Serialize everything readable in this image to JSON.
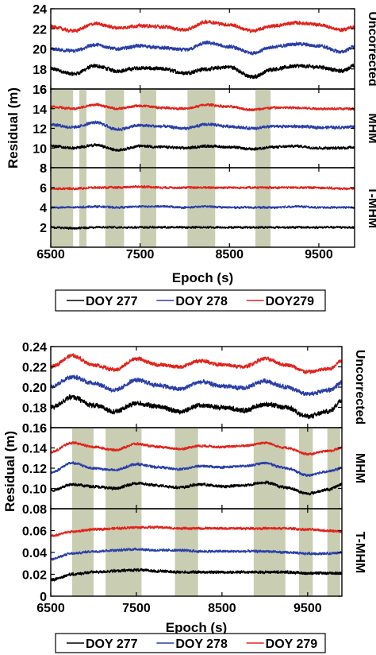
{
  "colors": {
    "doy277": "#000000",
    "doy278": "#2a3ea8",
    "doy279": "#e0231c",
    "shade": "#c9cdb2"
  },
  "chart_data": [
    {
      "type": "line",
      "xlabel": "Epoch (s)",
      "ylabel": "Residual (m)",
      "xlim": [
        6500,
        9900
      ],
      "xticks": [
        "6500",
        "7500",
        "8500",
        "9500"
      ],
      "grid": false,
      "legend_position": "bottom",
      "legend": [
        "DOY 277",
        "DOY 278",
        "DOY279"
      ],
      "panels": [
        {
          "label": "Uncorrected",
          "yticks": [
            "16",
            "18",
            "20",
            "22",
            "24"
          ],
          "ylim": [
            16,
            24
          ],
          "shaded_intervals": [],
          "series": [
            {
              "name": "DOY 277",
              "x": [
                6500,
                6750,
                7000,
                7250,
                7500,
                7750,
                8000,
                8250,
                8500,
                8750,
                9000,
                9250,
                9500,
                9750,
                9900
              ],
              "y": [
                18.0,
                17.5,
                18.3,
                17.8,
                18.1,
                18.0,
                17.6,
                18.0,
                18.2,
                17.2,
                18.0,
                18.3,
                18.2,
                17.8,
                18.3
              ]
            },
            {
              "name": "DOY 278",
              "x": [
                6500,
                6750,
                7000,
                7250,
                7500,
                7750,
                8000,
                8250,
                8500,
                8750,
                9000,
                9250,
                9500,
                9750,
                9900
              ],
              "y": [
                20.0,
                19.8,
                20.4,
                20.0,
                20.3,
                20.1,
                19.9,
                20.6,
                20.2,
                19.6,
                20.2,
                20.5,
                20.3,
                19.7,
                20.2
              ]
            },
            {
              "name": "DOY279",
              "x": [
                6500,
                6750,
                7000,
                7250,
                7500,
                7750,
                8000,
                8250,
                8500,
                8750,
                9000,
                9250,
                9500,
                9750,
                9900
              ],
              "y": [
                22.2,
                21.8,
                22.5,
                22.1,
                22.3,
                22.2,
                21.9,
                22.7,
                22.4,
                21.8,
                22.3,
                22.6,
                22.4,
                21.9,
                22.2
              ]
            }
          ]
        },
        {
          "label": "MHM",
          "yticks": [
            "8",
            "10",
            "12",
            "14",
            "16"
          ],
          "ylim": [
            8,
            16
          ],
          "shaded_intervals": [
            [
              6500,
              6750
            ],
            [
              6820,
              6900
            ],
            [
              7110,
              7320
            ],
            [
              7500,
              7680
            ],
            [
              8030,
              8340
            ],
            [
              8790,
              8960
            ]
          ],
          "series": [
            {
              "name": "DOY 277",
              "x": [
                6500,
                6750,
                7000,
                7250,
                7500,
                7750,
                8000,
                8250,
                8500,
                8750,
                9000,
                9250,
                9500,
                9750,
                9900
              ],
              "y": [
                10.2,
                10.0,
                10.3,
                9.8,
                10.2,
                10.1,
                10.0,
                10.2,
                10.1,
                9.9,
                10.1,
                10.2,
                10.0,
                10.0,
                10.1
              ]
            },
            {
              "name": "DOY 278",
              "x": [
                6500,
                6750,
                7000,
                7250,
                7500,
                7750,
                8000,
                8250,
                8500,
                8750,
                9000,
                9250,
                9500,
                9750,
                9900
              ],
              "y": [
                12.4,
                12.1,
                12.6,
                11.9,
                12.3,
                12.2,
                12.0,
                12.4,
                12.2,
                12.0,
                12.2,
                12.2,
                12.1,
                12.1,
                12.2
              ]
            },
            {
              "name": "DOY279",
              "x": [
                6500,
                6750,
                7000,
                7250,
                7500,
                7750,
                8000,
                8250,
                8500,
                8750,
                9000,
                9250,
                9500,
                9750,
                9900
              ],
              "y": [
                14.2,
                14.0,
                14.4,
                14.0,
                14.3,
                14.1,
                14.0,
                14.4,
                14.2,
                13.9,
                14.1,
                14.1,
                14.0,
                14.0,
                14.0
              ]
            }
          ]
        },
        {
          "label": "T-MHM",
          "yticks": [
            "2",
            "4",
            "6",
            "8"
          ],
          "ylim": [
            0,
            8
          ],
          "shaded_intervals": [
            [
              6500,
              6750
            ],
            [
              6820,
              6900
            ],
            [
              7110,
              7320
            ],
            [
              7500,
              7680
            ],
            [
              8030,
              8340
            ],
            [
              8790,
              8960
            ]
          ],
          "series": [
            {
              "name": "DOY 277",
              "x": [
                6500,
                6750,
                7000,
                7250,
                7500,
                7750,
                8000,
                8250,
                8500,
                8750,
                9000,
                9250,
                9500,
                9750,
                9900
              ],
              "y": [
                2.0,
                1.9,
                2.0,
                2.0,
                2.0,
                2.0,
                2.0,
                2.0,
                2.0,
                2.0,
                2.0,
                2.0,
                2.0,
                2.0,
                2.0
              ]
            },
            {
              "name": "DOY 278",
              "x": [
                6500,
                6750,
                7000,
                7250,
                7500,
                7750,
                8000,
                8250,
                8500,
                8750,
                9000,
                9250,
                9500,
                9750,
                9900
              ],
              "y": [
                4.0,
                4.0,
                4.1,
                4.0,
                4.1,
                4.1,
                4.0,
                4.1,
                4.0,
                4.0,
                4.0,
                4.1,
                4.0,
                4.0,
                4.0
              ]
            },
            {
              "name": "DOY279",
              "x": [
                6500,
                6750,
                7000,
                7250,
                7500,
                7750,
                8000,
                8250,
                8500,
                8750,
                9000,
                9250,
                9500,
                9750,
                9900
              ],
              "y": [
                5.9,
                5.9,
                6.0,
                6.0,
                6.1,
                6.0,
                6.0,
                6.0,
                6.0,
                6.0,
                6.0,
                6.0,
                6.0,
                5.9,
                5.9
              ]
            }
          ]
        }
      ]
    },
    {
      "type": "line",
      "xlabel": "Epoch (s)",
      "ylabel": "Residual (m)",
      "xlim": [
        6500,
        9900
      ],
      "xticks": [
        "6500",
        "7500",
        "8500",
        "9500"
      ],
      "grid": false,
      "legend_position": "bottom",
      "legend": [
        "DOY 277",
        "DOY 278",
        "DOY 279"
      ],
      "panels": [
        {
          "label": "Uncorrected",
          "yticks": [
            "0.16",
            "0.18",
            "0.20",
            "0.22",
            "0.24"
          ],
          "ylim": [
            0.16,
            0.24
          ],
          "shaded_intervals": [],
          "series": [
            {
              "name": "DOY 277",
              "x": [
                6500,
                6750,
                7000,
                7250,
                7500,
                7750,
                8000,
                8250,
                8500,
                8750,
                9000,
                9250,
                9500,
                9750,
                9900
              ],
              "y": [
                0.18,
                0.19,
                0.182,
                0.176,
                0.184,
                0.181,
                0.176,
                0.182,
                0.18,
                0.177,
                0.183,
                0.18,
                0.171,
                0.176,
                0.187
              ]
            },
            {
              "name": "DOY 278",
              "x": [
                6500,
                6750,
                7000,
                7250,
                7500,
                7750,
                8000,
                8250,
                8500,
                8750,
                9000,
                9250,
                9500,
                9750,
                9900
              ],
              "y": [
                0.201,
                0.21,
                0.204,
                0.197,
                0.207,
                0.202,
                0.198,
                0.205,
                0.201,
                0.199,
                0.206,
                0.2,
                0.193,
                0.197,
                0.204
              ]
            },
            {
              "name": "DOY 279",
              "x": [
                6500,
                6750,
                7000,
                7250,
                7500,
                7750,
                8000,
                8250,
                8500,
                8750,
                9000,
                9250,
                9500,
                9750,
                9900
              ],
              "y": [
                0.22,
                0.231,
                0.222,
                0.217,
                0.228,
                0.222,
                0.22,
                0.226,
                0.222,
                0.22,
                0.228,
                0.222,
                0.215,
                0.218,
                0.226
              ]
            }
          ]
        },
        {
          "label": "MHM",
          "yticks": [
            "0.10",
            "0.12",
            "0.14",
            "0.16"
          ],
          "ylim": [
            0.08,
            0.16
          ],
          "shaded_intervals": [
            [
              6750,
              7000
            ],
            [
              7140,
              7560
            ],
            [
              7950,
              8220
            ],
            [
              8870,
              9240
            ],
            [
              9400,
              9560
            ],
            [
              9730,
              9880
            ]
          ],
          "series": [
            {
              "name": "DOY 277",
              "x": [
                6500,
                6750,
                7000,
                7250,
                7500,
                7750,
                8000,
                8250,
                8500,
                8750,
                9000,
                9250,
                9500,
                9750,
                9900
              ],
              "y": [
                0.098,
                0.104,
                0.102,
                0.1,
                0.105,
                0.103,
                0.101,
                0.104,
                0.102,
                0.103,
                0.106,
                0.101,
                0.095,
                0.099,
                0.104
              ]
            },
            {
              "name": "DOY 278",
              "x": [
                6500,
                6750,
                7000,
                7250,
                7500,
                7750,
                8000,
                8250,
                8500,
                8750,
                9000,
                9250,
                9500,
                9750,
                9900
              ],
              "y": [
                0.116,
                0.125,
                0.12,
                0.118,
                0.124,
                0.121,
                0.119,
                0.122,
                0.121,
                0.122,
                0.125,
                0.12,
                0.113,
                0.117,
                0.12
              ]
            },
            {
              "name": "DOY 279",
              "x": [
                6500,
                6750,
                7000,
                7250,
                7500,
                7750,
                8000,
                8250,
                8500,
                8750,
                9000,
                9250,
                9500,
                9750,
                9900
              ],
              "y": [
                0.136,
                0.145,
                0.141,
                0.138,
                0.144,
                0.141,
                0.139,
                0.142,
                0.141,
                0.142,
                0.145,
                0.14,
                0.134,
                0.137,
                0.14
              ]
            }
          ]
        },
        {
          "label": "T-MHM",
          "yticks": [
            "0",
            "0.02",
            "0.04",
            "0.06",
            "0.08"
          ],
          "ylim": [
            0,
            0.08
          ],
          "shaded_intervals": [
            [
              6750,
              7000
            ],
            [
              7140,
              7560
            ],
            [
              7950,
              8220
            ],
            [
              8870,
              9240
            ],
            [
              9400,
              9560
            ],
            [
              9730,
              9880
            ]
          ],
          "series": [
            {
              "name": "DOY 277",
              "x": [
                6500,
                6750,
                7000,
                7250,
                7500,
                7750,
                8000,
                8250,
                8500,
                8750,
                9000,
                9250,
                9500,
                9750,
                9900
              ],
              "y": [
                0.015,
                0.02,
                0.022,
                0.023,
                0.024,
                0.023,
                0.022,
                0.022,
                0.022,
                0.022,
                0.022,
                0.022,
                0.021,
                0.021,
                0.021
              ]
            },
            {
              "name": "DOY 278",
              "x": [
                6500,
                6750,
                7000,
                7250,
                7500,
                7750,
                8000,
                8250,
                8500,
                8750,
                9000,
                9250,
                9500,
                9750,
                9900
              ],
              "y": [
                0.034,
                0.039,
                0.041,
                0.042,
                0.043,
                0.042,
                0.042,
                0.041,
                0.041,
                0.041,
                0.041,
                0.04,
                0.039,
                0.039,
                0.04
              ]
            },
            {
              "name": "DOY 279",
              "x": [
                6500,
                6750,
                7000,
                7250,
                7500,
                7750,
                8000,
                8250,
                8500,
                8750,
                9000,
                9250,
                9500,
                9750,
                9900
              ],
              "y": [
                0.055,
                0.059,
                0.061,
                0.062,
                0.063,
                0.063,
                0.062,
                0.062,
                0.062,
                0.062,
                0.062,
                0.062,
                0.061,
                0.06,
                0.059
              ]
            }
          ]
        }
      ]
    }
  ]
}
